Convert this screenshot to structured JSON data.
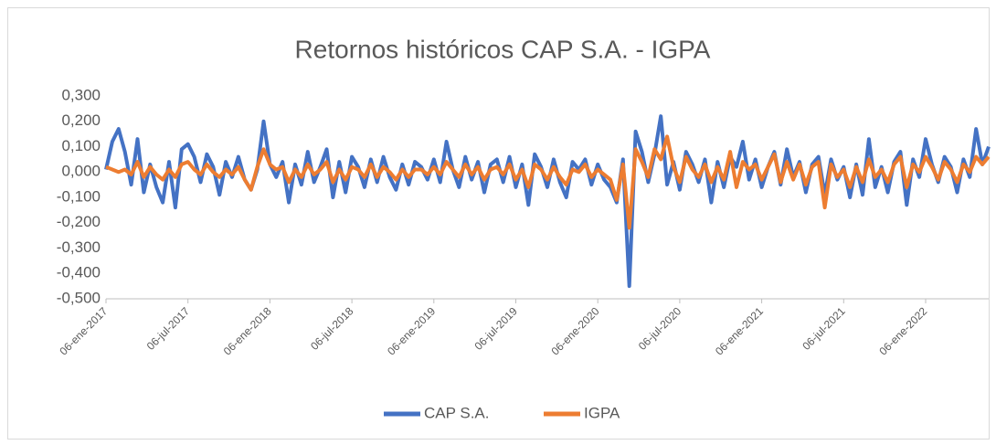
{
  "chart_data": {
    "type": "line",
    "title": "Retornos históricos CAP S.A. - IGPA",
    "categories": [
      "06-ene-2017",
      null,
      null,
      null,
      null,
      null,
      null,
      null,
      null,
      null,
      null,
      null,
      null,
      "06-jul-2017",
      null,
      null,
      null,
      null,
      null,
      null,
      null,
      null,
      null,
      null,
      null,
      null,
      "06-ene-2018",
      null,
      null,
      null,
      null,
      null,
      null,
      null,
      null,
      null,
      null,
      null,
      null,
      "06-jul-2018",
      null,
      null,
      null,
      null,
      null,
      null,
      null,
      null,
      null,
      null,
      null,
      null,
      "06-ene-2019",
      null,
      null,
      null,
      null,
      null,
      null,
      null,
      null,
      null,
      null,
      null,
      null,
      "06-jul-2019",
      null,
      null,
      null,
      null,
      null,
      null,
      null,
      null,
      null,
      null,
      null,
      null,
      "06-ene-2020",
      null,
      null,
      null,
      null,
      null,
      null,
      null,
      null,
      null,
      null,
      null,
      null,
      "06-jul-2020",
      null,
      null,
      null,
      null,
      null,
      null,
      null,
      null,
      null,
      null,
      null,
      null,
      "06-ene-2021",
      null,
      null,
      null,
      null,
      null,
      null,
      null,
      null,
      null,
      null,
      null,
      null,
      "06-jul-2021",
      null,
      null,
      null,
      null,
      null,
      null,
      null,
      null,
      null,
      null,
      null,
      null,
      "06-ene-2022",
      null,
      null,
      null,
      null,
      null,
      null,
      null,
      null,
      null,
      null
    ],
    "series": [
      {
        "name": "CAP S.A.",
        "color": "#4472c4",
        "values": [
          0.01,
          0.12,
          0.17,
          0.08,
          -0.05,
          0.13,
          -0.08,
          0.03,
          -0.06,
          -0.12,
          0.04,
          -0.14,
          0.09,
          0.11,
          0.06,
          -0.04,
          0.07,
          0.02,
          -0.09,
          0.04,
          -0.02,
          0.06,
          -0.03,
          -0.07,
          0.01,
          0.2,
          0.03,
          -0.02,
          0.04,
          -0.12,
          0.03,
          -0.05,
          0.08,
          -0.04,
          0.02,
          0.09,
          -0.1,
          0.04,
          -0.08,
          0.06,
          0.02,
          -0.06,
          0.05,
          -0.04,
          0.06,
          -0.02,
          -0.07,
          0.03,
          -0.05,
          0.04,
          0.02,
          -0.03,
          0.05,
          -0.04,
          0.12,
          0.01,
          -0.06,
          0.06,
          -0.03,
          0.04,
          -0.08,
          0.03,
          0.05,
          -0.04,
          0.06,
          -0.06,
          0.03,
          -0.13,
          0.07,
          0.02,
          -0.06,
          0.05,
          -0.04,
          -0.1,
          0.04,
          0.01,
          0.05,
          -0.05,
          0.03,
          -0.03,
          -0.06,
          -0.12,
          0.05,
          -0.45,
          0.16,
          0.08,
          -0.04,
          0.07,
          0.22,
          -0.05,
          0.04,
          -0.07,
          0.08,
          0.03,
          -0.04,
          0.05,
          -0.12,
          0.04,
          -0.06,
          0.06,
          0.02,
          0.12,
          -0.03,
          0.05,
          -0.06,
          0.02,
          0.08,
          -0.05,
          0.09,
          -0.02,
          0.04,
          -0.08,
          0.03,
          0.06,
          -0.09,
          0.05,
          -0.03,
          0.02,
          -0.1,
          0.03,
          -0.09,
          0.13,
          -0.06,
          0.02,
          -0.08,
          0.04,
          0.08,
          -0.13,
          0.05,
          -0.02,
          0.13,
          0.03,
          -0.04,
          0.06,
          0.02,
          -0.08,
          0.05,
          -0.02,
          0.17,
          0.03,
          0.1
        ]
      },
      {
        "name": "IGPA",
        "color": "#ed7d31",
        "values": [
          0.02,
          0.01,
          0.0,
          0.01,
          -0.01,
          0.04,
          -0.02,
          0.02,
          -0.01,
          -0.03,
          0.01,
          -0.02,
          0.03,
          0.04,
          0.01,
          -0.01,
          0.03,
          0.0,
          -0.02,
          0.01,
          -0.01,
          0.02,
          -0.03,
          -0.07,
          0.02,
          0.09,
          0.03,
          0.01,
          0.02,
          -0.04,
          0.01,
          -0.02,
          0.03,
          -0.01,
          0.01,
          0.04,
          -0.04,
          0.01,
          -0.03,
          0.02,
          0.01,
          -0.02,
          0.03,
          -0.02,
          0.02,
          0.0,
          -0.03,
          0.01,
          -0.02,
          0.01,
          0.01,
          -0.01,
          0.02,
          -0.01,
          0.04,
          0.01,
          -0.02,
          0.03,
          -0.01,
          0.02,
          -0.03,
          0.01,
          0.02,
          -0.01,
          0.03,
          -0.03,
          0.01,
          -0.06,
          0.03,
          0.01,
          -0.03,
          0.02,
          -0.02,
          -0.05,
          0.01,
          0.0,
          0.03,
          -0.02,
          0.01,
          -0.01,
          -0.03,
          -0.11,
          0.03,
          -0.22,
          0.09,
          0.04,
          -0.02,
          0.09,
          0.05,
          0.14,
          0.02,
          -0.04,
          0.06,
          0.01,
          -0.02,
          0.03,
          -0.04,
          0.02,
          -0.03,
          0.08,
          -0.06,
          0.04,
          0.01,
          0.03,
          -0.03,
          0.02,
          0.07,
          -0.04,
          0.04,
          -0.03,
          0.03,
          -0.05,
          0.02,
          0.04,
          -0.14,
          0.03,
          -0.02,
          0.01,
          -0.06,
          0.02,
          -0.04,
          0.05,
          -0.02,
          0.01,
          -0.04,
          0.03,
          0.06,
          -0.06,
          0.03,
          0.0,
          0.06,
          0.02,
          -0.03,
          0.04,
          0.01,
          -0.04,
          0.03,
          0.0,
          0.06,
          0.03,
          0.06
        ]
      }
    ],
    "ylim": [
      -0.5,
      0.3
    ],
    "yticks": [
      {
        "value": -0.5,
        "label": "-0,500"
      },
      {
        "value": -0.4,
        "label": "-0,400"
      },
      {
        "value": -0.3,
        "label": "-0,300"
      },
      {
        "value": -0.2,
        "label": "-0,200"
      },
      {
        "value": -0.1,
        "label": "-0,100"
      },
      {
        "value": 0,
        "label": "0,000"
      },
      {
        "value": 0.1,
        "label": "0,100"
      },
      {
        "value": 0.2,
        "label": "0,200"
      },
      {
        "value": 0.3,
        "label": "0,300"
      }
    ],
    "grid": false,
    "legend": "bottom"
  }
}
